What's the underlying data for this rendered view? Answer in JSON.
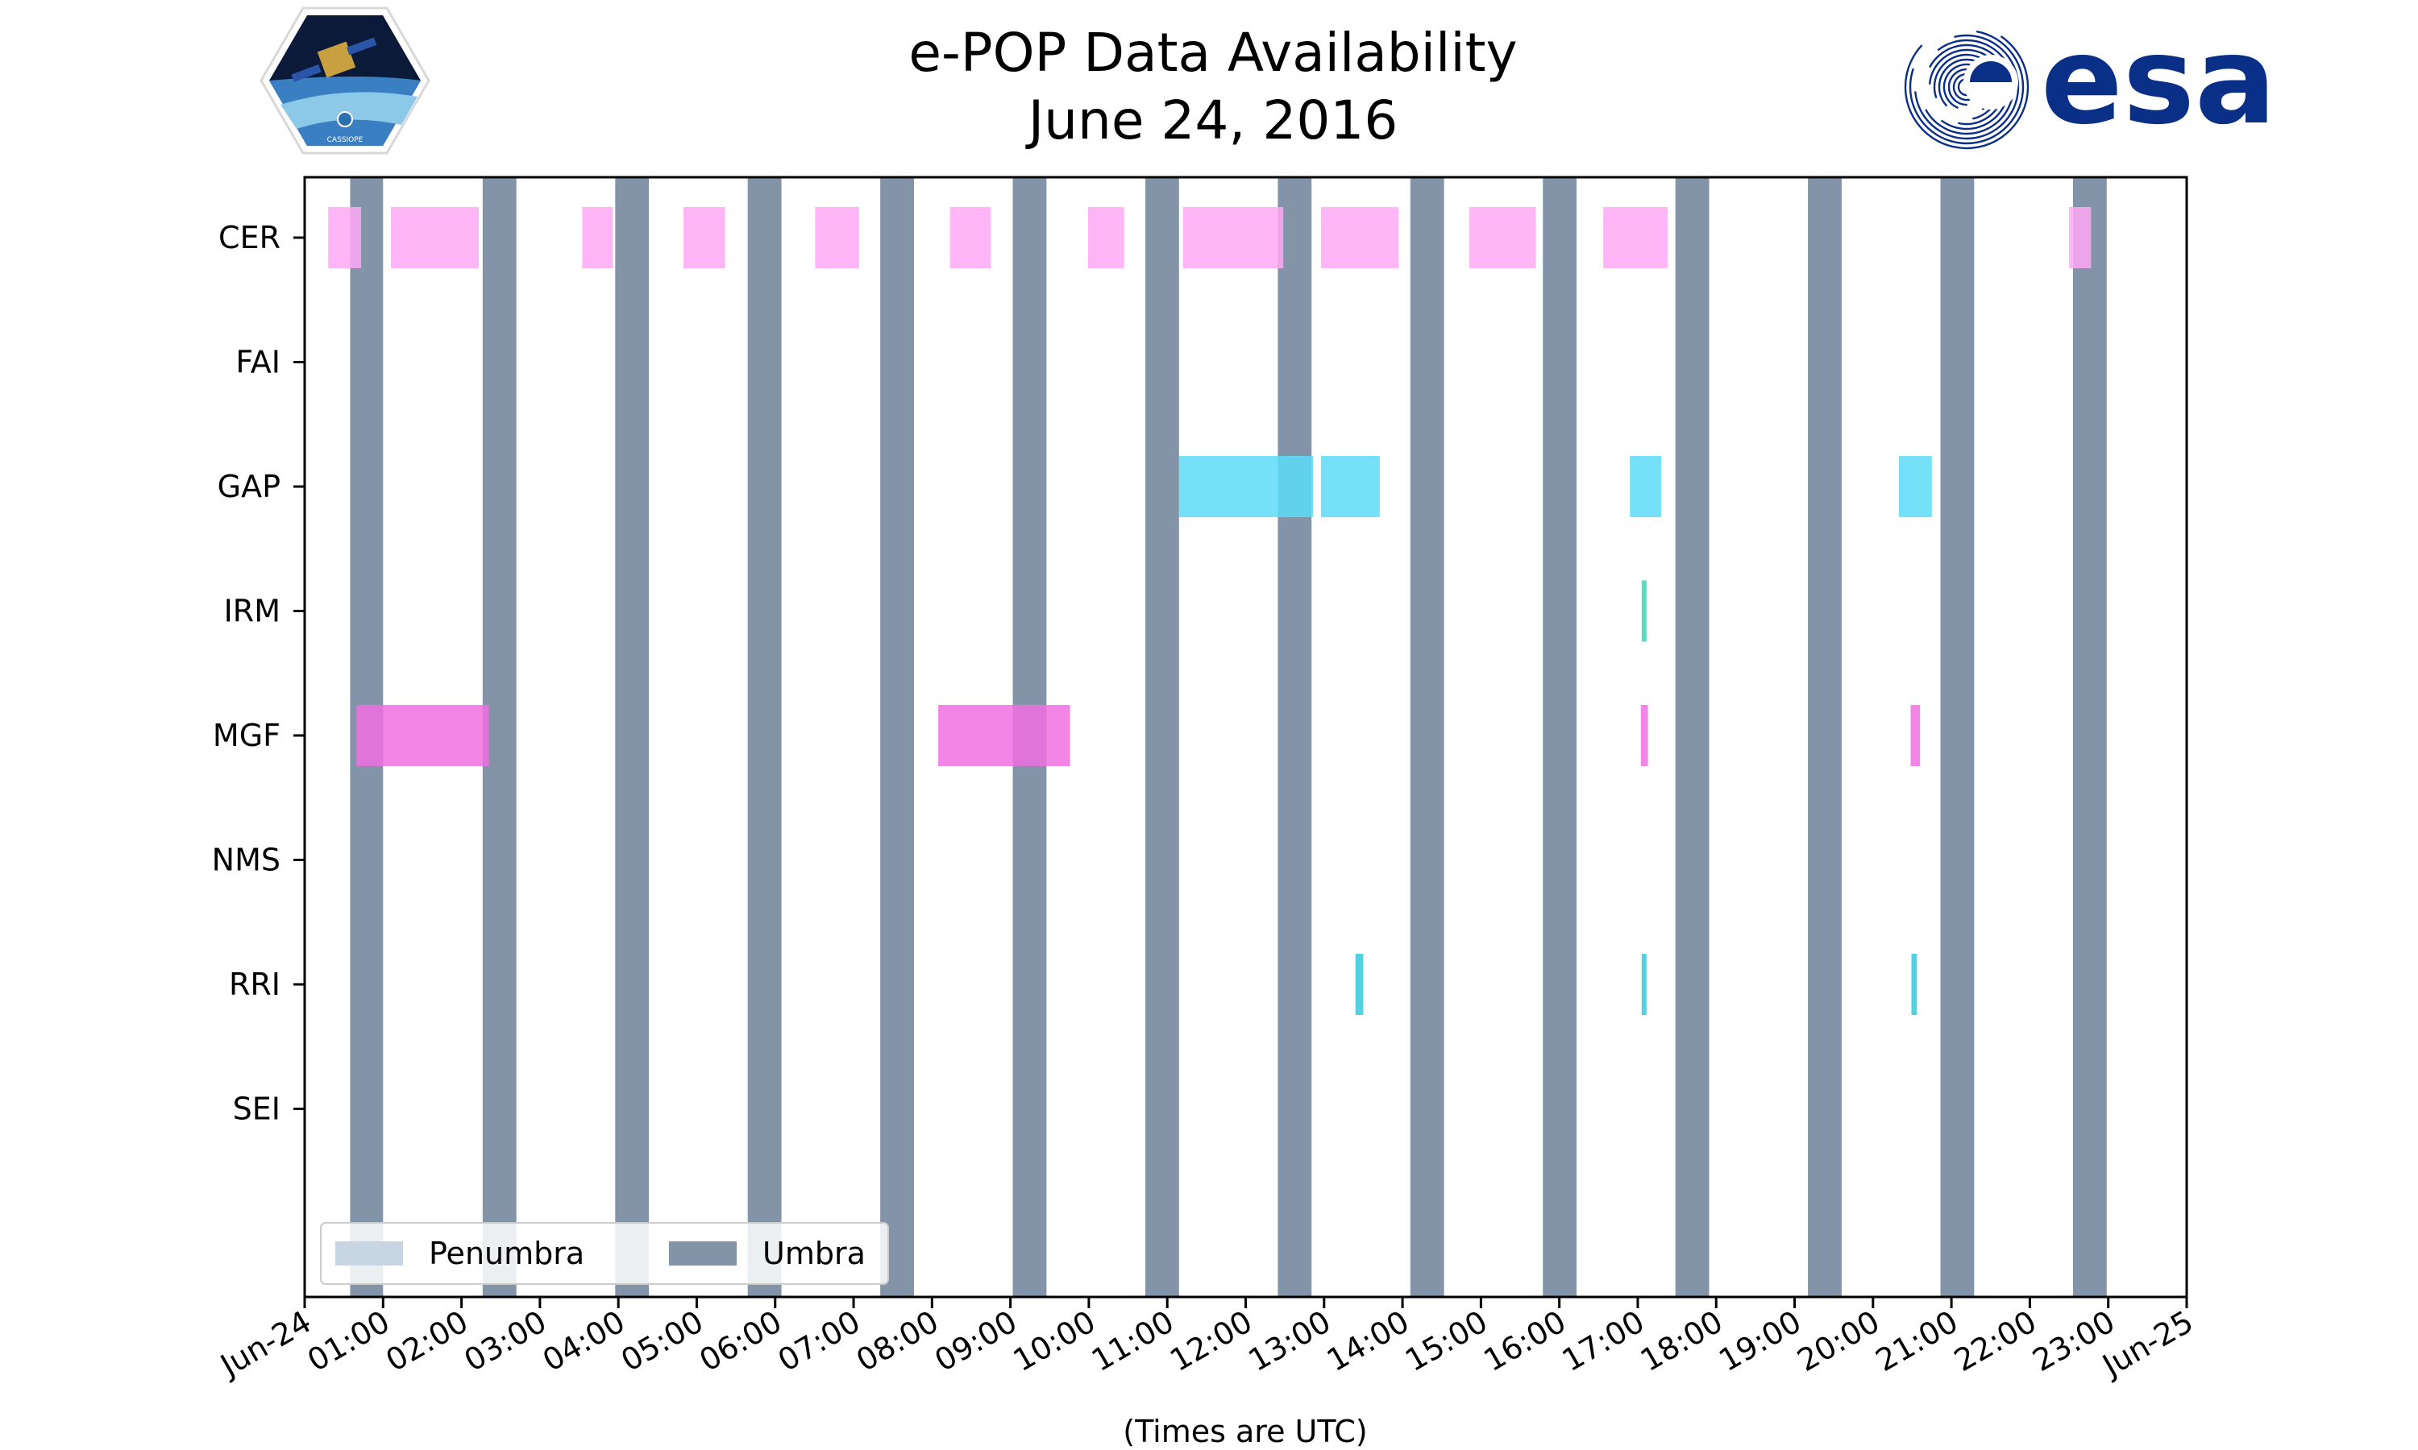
{
  "header": {
    "title_line1": "e-POP Data Availability",
    "title_line2": "June 24, 2016",
    "left_logo": {
      "name": "CASSIOPE mission patch",
      "text": "CASSIOPE"
    },
    "right_logo": {
      "name": "esa logo",
      "text": "esa"
    }
  },
  "colors": {
    "umbra": "#8394a8",
    "penumbra": "#c8d5e3",
    "CER": "#ffa8f5",
    "GAP": "#5ddcf7",
    "IRM": "#40d4b0",
    "MGF": "#f070e0",
    "RRI": "#36c8dc",
    "brand_blue": "#0a2f86"
  },
  "chart_data": {
    "type": "timeline",
    "title": "e-POP Data Availability\nJune 24, 2016",
    "xlabel": "(Times are UTC)",
    "xunit": "hours since 2016-06-24 00:00 UTC",
    "xlim": [
      0,
      24
    ],
    "x_tick_labels": [
      "Jun-24",
      "01:00",
      "02:00",
      "03:00",
      "04:00",
      "05:00",
      "06:00",
      "07:00",
      "08:00",
      "09:00",
      "10:00",
      "11:00",
      "12:00",
      "13:00",
      "14:00",
      "15:00",
      "16:00",
      "17:00",
      "18:00",
      "19:00",
      "20:00",
      "21:00",
      "22:00",
      "23:00",
      "Jun-25"
    ],
    "categories": [
      "CER",
      "FAI",
      "GAP",
      "IRM",
      "MGF",
      "NMS",
      "RRI",
      "SEI"
    ],
    "legend": {
      "position": "lower-left",
      "entries": [
        "Penumbra",
        "Umbra"
      ]
    },
    "umbra": [
      [
        0.58,
        1.0
      ],
      [
        2.27,
        2.7
      ],
      [
        3.96,
        4.39
      ],
      [
        5.65,
        6.08
      ],
      [
        7.34,
        7.77
      ],
      [
        9.03,
        9.46
      ],
      [
        10.72,
        11.15
      ],
      [
        12.41,
        12.84
      ],
      [
        14.1,
        14.53
      ],
      [
        15.79,
        16.22
      ],
      [
        17.48,
        17.91
      ],
      [
        19.17,
        19.6
      ],
      [
        20.86,
        21.29
      ],
      [
        22.55,
        22.98
      ]
    ],
    "series": [
      {
        "name": "CER",
        "intervals": [
          [
            0.3,
            0.72
          ],
          [
            1.1,
            2.22
          ],
          [
            3.54,
            3.93
          ],
          [
            4.83,
            5.36
          ],
          [
            6.51,
            7.07
          ],
          [
            8.23,
            8.75
          ],
          [
            9.99,
            10.45
          ],
          [
            11.2,
            12.48
          ],
          [
            12.96,
            13.95
          ],
          [
            14.85,
            15.7
          ],
          [
            16.56,
            17.38
          ],
          [
            22.5,
            22.78
          ]
        ]
      },
      {
        "name": "FAI",
        "intervals": []
      },
      {
        "name": "GAP",
        "intervals": [
          [
            11.15,
            12.86
          ],
          [
            12.96,
            13.71
          ],
          [
            16.9,
            17.3
          ],
          [
            20.33,
            20.75
          ]
        ]
      },
      {
        "name": "IRM",
        "intervals": [
          [
            17.05,
            17.11
          ]
        ]
      },
      {
        "name": "MGF",
        "intervals": [
          [
            0.66,
            2.35
          ],
          [
            8.08,
            9.76
          ],
          [
            17.04,
            17.13
          ],
          [
            20.48,
            20.6
          ]
        ]
      },
      {
        "name": "NMS",
        "intervals": []
      },
      {
        "name": "RRI",
        "intervals": [
          [
            13.4,
            13.5
          ],
          [
            17.05,
            17.11
          ],
          [
            20.49,
            20.56
          ]
        ]
      },
      {
        "name": "SEI",
        "intervals": []
      }
    ]
  }
}
